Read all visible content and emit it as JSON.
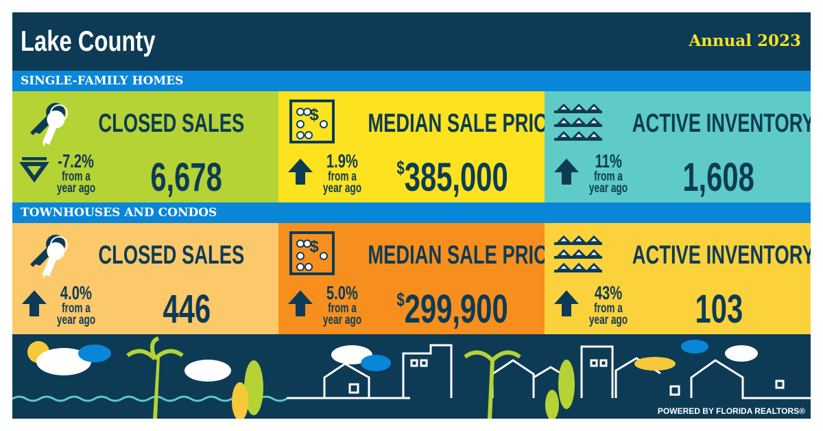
{
  "header": {
    "title": "Lake County",
    "period": "Annual 2023"
  },
  "sections": [
    {
      "title": "SINGLE-FAMILY HOMES",
      "cards": [
        {
          "label": "CLOSED SALES",
          "change": "-7.2%",
          "note": "from a year ago",
          "value": "6,678"
        },
        {
          "label": "MEDIAN SALE PRICE",
          "change": "1.9%",
          "note": "from a year ago",
          "currency": "$",
          "value": "385,000"
        },
        {
          "label": "ACTIVE INVENTORY",
          "change": "11%",
          "note": "from a year ago",
          "value": "1,608"
        }
      ]
    },
    {
      "title": "TOWNHOUSES AND CONDOS",
      "cards": [
        {
          "label": "CLOSED SALES",
          "change": "4.0%",
          "note": "from a year ago",
          "value": "446"
        },
        {
          "label": "MEDIAN SALE PRICE",
          "change": "5.0%",
          "note": "from a year ago",
          "currency": "$",
          "value": "299,900"
        },
        {
          "label": "ACTIVE INVENTORY",
          "change": "43%",
          "note": "from a year ago",
          "value": "103"
        }
      ]
    }
  ],
  "footer": {
    "credit": "POWERED BY FLORIDA REALTORS®"
  }
}
